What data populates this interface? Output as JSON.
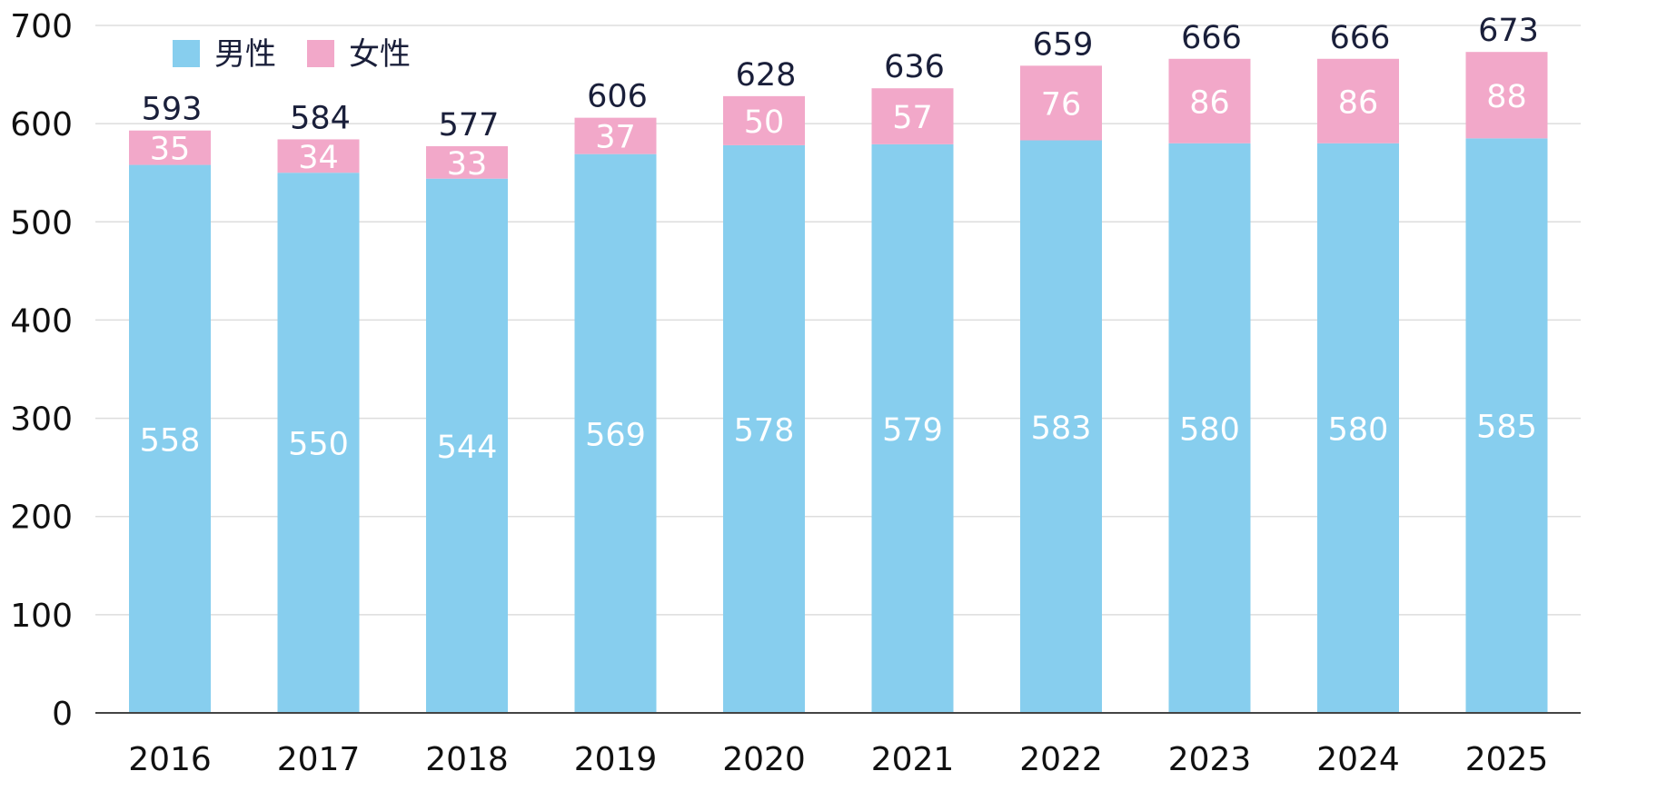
{
  "chart_data": {
    "type": "bar",
    "stacked": true,
    "categories": [
      "2016",
      "2017",
      "2018",
      "2019",
      "2020",
      "2021",
      "2022",
      "2023",
      "2024",
      "2025"
    ],
    "series": [
      {
        "name": "男性",
        "color": "#87ceee",
        "values": [
          558,
          550,
          544,
          569,
          578,
          579,
          583,
          580,
          580,
          585
        ]
      },
      {
        "name": "女性",
        "color": "#f2a8c9",
        "values": [
          35,
          34,
          33,
          37,
          50,
          57,
          76,
          86,
          86,
          88
        ]
      }
    ],
    "totals": [
      593,
      584,
      577,
      606,
      628,
      636,
      659,
      666,
      666,
      673
    ],
    "ylim": [
      0,
      700
    ],
    "yticks": [
      0,
      100,
      200,
      300,
      400,
      500,
      600,
      700
    ],
    "grid": true,
    "legend_position": "top-left",
    "gridline_color": "#dddddd",
    "axis_color": "#444444"
  }
}
